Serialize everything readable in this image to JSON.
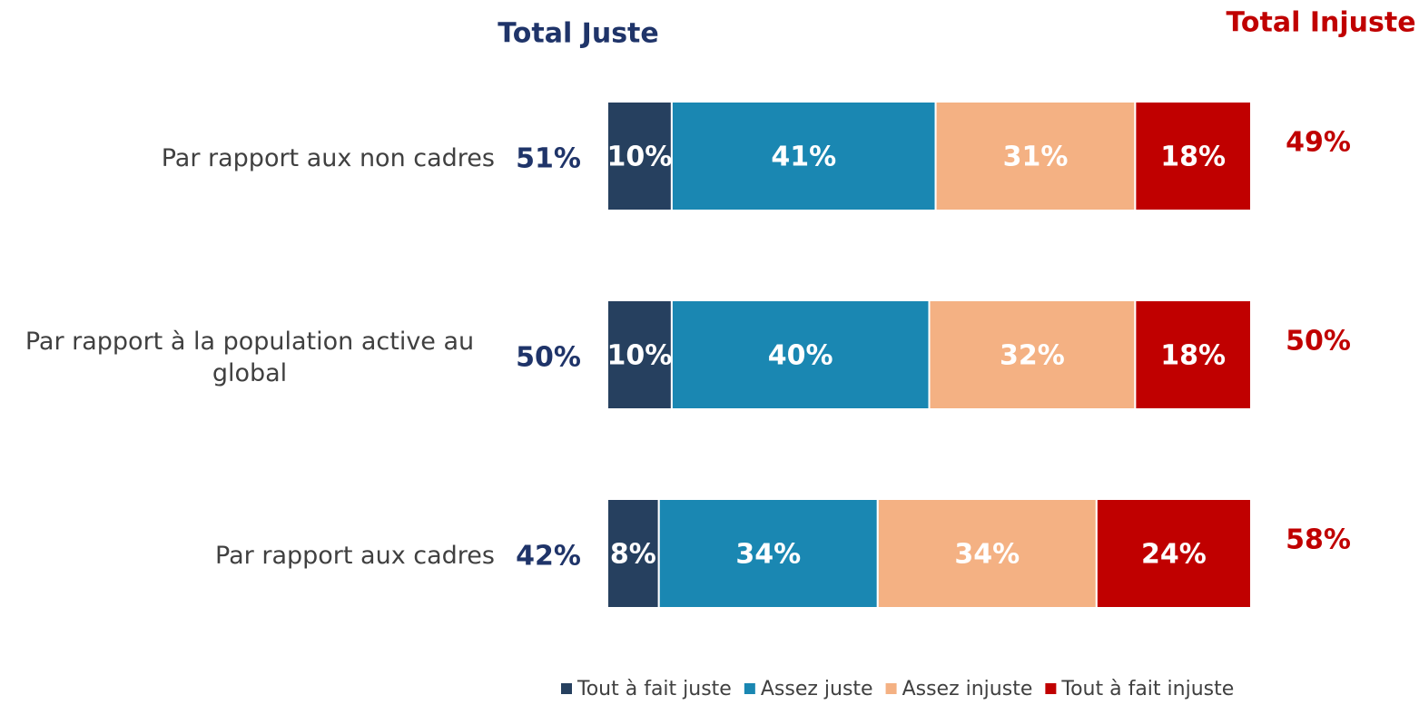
{
  "chart_data": {
    "type": "stacked-bar-horizontal",
    "categories": [
      "Par rapport aux non cadres",
      "Par rapport à la population active au global",
      "Par rapport aux cadres"
    ],
    "series": [
      {
        "name": "Tout à fait juste",
        "color": "#26405f",
        "values": [
          10,
          10,
          8
        ],
        "value_labels": [
          "10%",
          "10%",
          "8%"
        ]
      },
      {
        "name": "Assez juste",
        "color": "#1a87b2",
        "values": [
          41,
          40,
          34
        ],
        "value_labels": [
          "41%",
          "40%",
          "34%"
        ]
      },
      {
        "name": "Assez injuste",
        "color": "#f4b183",
        "values": [
          31,
          32,
          34
        ],
        "value_labels": [
          "31%",
          "32%",
          "34%"
        ]
      },
      {
        "name": "Tout à fait injuste",
        "color": "#c00000",
        "values": [
          18,
          18,
          24
        ],
        "value_labels": [
          "18%",
          "18%",
          "24%"
        ]
      }
    ],
    "totals": [
      {
        "title": "Total Juste",
        "color": "#1f3469",
        "values": [
          51,
          50,
          42
        ],
        "value_labels": [
          "51%",
          "50%",
          "42%"
        ]
      },
      {
        "title": "Total Injuste",
        "color": "#c00000",
        "values": [
          49,
          50,
          58
        ],
        "value_labels": [
          "49%",
          "50%",
          "58%"
        ]
      }
    ],
    "legend": "bottom"
  }
}
